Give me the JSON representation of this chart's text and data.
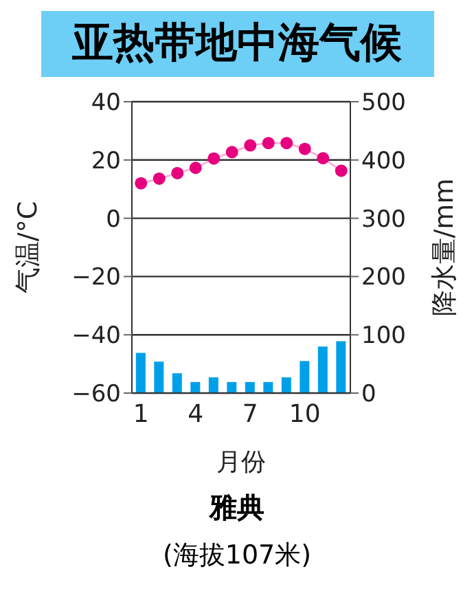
{
  "chart_data": {
    "type": "bar",
    "title": "亚热带地中海气候",
    "subtitle": "雅典",
    "annotations": [
      "(海拔107米)"
    ],
    "xlabel": "月份",
    "ylabel": "气温/°C",
    "y2label": "降水量/mm",
    "categories": [
      "1",
      null,
      null,
      "4",
      null,
      null,
      "7",
      null,
      null,
      "10",
      null,
      null
    ],
    "series": [
      {
        "name": null,
        "type": "line",
        "axis": "y",
        "color": "#e6007e",
        "values": [
          12,
          13.6,
          15.5,
          17.3,
          20.5,
          22.7,
          25,
          25.8,
          25.8,
          23.8,
          20.6,
          16.3
        ]
      },
      {
        "name": null,
        "axis": "y2",
        "color": "#00a0e9",
        "values": [
          69,
          54,
          34,
          19,
          27,
          19,
          19,
          19,
          27,
          55,
          80,
          89
        ]
      }
    ],
    "ylim": [
      -60,
      40
    ],
    "yticks": [
      -60,
      -40,
      -20,
      0,
      20,
      40
    ],
    "y2lim": [
      0,
      500
    ],
    "y2ticks": [
      0,
      100,
      200,
      300,
      400,
      500
    ],
    "grid": "y",
    "marker": "circle"
  }
}
